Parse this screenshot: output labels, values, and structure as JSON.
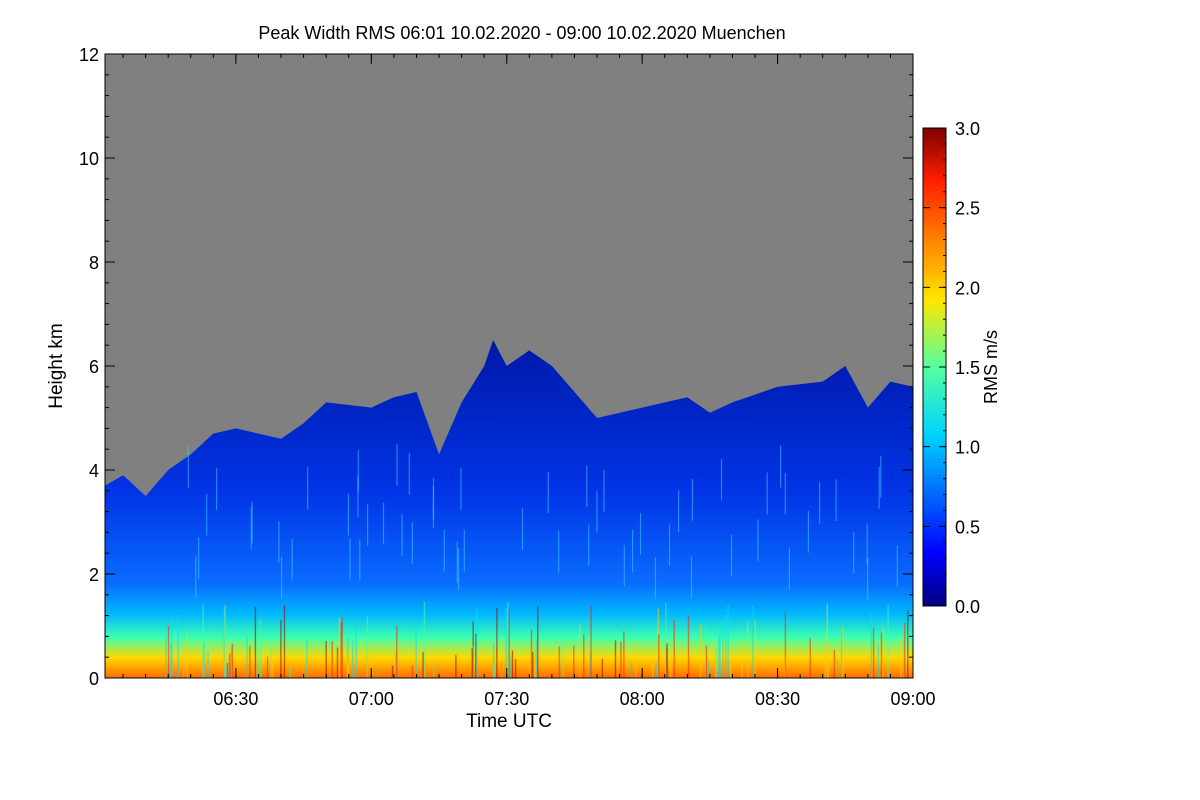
{
  "title": "Peak Width RMS   06:01 10.02.2020 - 09:00 10.02.2020 Muenchen",
  "chart_data": {
    "type": "heatmap",
    "title": "Peak Width RMS   06:01 10.02.2020 - 09:00 10.02.2020 Muenchen",
    "xlabel": "Time UTC",
    "ylabel": "Height km",
    "x_range": [
      "06:01",
      "09:00"
    ],
    "x_ticks": [
      "06:30",
      "07:00",
      "07:30",
      "08:00",
      "08:30",
      "09:00"
    ],
    "y_range": [
      0,
      12
    ],
    "y_ticks": [
      "0",
      "2",
      "4",
      "6",
      "8",
      "10",
      "12"
    ],
    "colorbar": {
      "label": "RMS m/s",
      "range": [
        0.0,
        3.0
      ],
      "ticks": [
        "0.0",
        "0.5",
        "1.0",
        "1.5",
        "2.0",
        "2.5",
        "3.0"
      ],
      "colormap": "jet"
    },
    "background_color": "#808080",
    "echo_top_km": [
      {
        "t": "06:01",
        "h": 3.7
      },
      {
        "t": "06:05",
        "h": 3.9
      },
      {
        "t": "06:10",
        "h": 3.5
      },
      {
        "t": "06:12",
        "h": 3.7
      },
      {
        "t": "06:15",
        "h": 4.0
      },
      {
        "t": "06:20",
        "h": 4.3
      },
      {
        "t": "06:25",
        "h": 4.7
      },
      {
        "t": "06:30",
        "h": 4.8
      },
      {
        "t": "06:40",
        "h": 4.6
      },
      {
        "t": "06:45",
        "h": 4.9
      },
      {
        "t": "06:50",
        "h": 5.3
      },
      {
        "t": "07:00",
        "h": 5.2
      },
      {
        "t": "07:05",
        "h": 5.4
      },
      {
        "t": "07:10",
        "h": 5.5
      },
      {
        "t": "07:15",
        "h": 4.3
      },
      {
        "t": "07:20",
        "h": 5.3
      },
      {
        "t": "07:25",
        "h": 6.0
      },
      {
        "t": "07:27",
        "h": 6.5
      },
      {
        "t": "07:30",
        "h": 6.0
      },
      {
        "t": "07:35",
        "h": 6.3
      },
      {
        "t": "07:40",
        "h": 6.0
      },
      {
        "t": "07:45",
        "h": 5.5
      },
      {
        "t": "07:50",
        "h": 5.0
      },
      {
        "t": "08:00",
        "h": 5.2
      },
      {
        "t": "08:10",
        "h": 5.4
      },
      {
        "t": "08:15",
        "h": 5.1
      },
      {
        "t": "08:20",
        "h": 5.3
      },
      {
        "t": "08:30",
        "h": 5.6
      },
      {
        "t": "08:40",
        "h": 5.7
      },
      {
        "t": "08:45",
        "h": 6.0
      },
      {
        "t": "08:50",
        "h": 5.2
      },
      {
        "t": "08:55",
        "h": 5.7
      },
      {
        "t": "09:00",
        "h": 5.6
      }
    ],
    "layers": [
      {
        "band_km": [
          0.0,
          1.0
        ],
        "rms_ms": 2.5
      },
      {
        "band_km": [
          1.0,
          1.5
        ],
        "rms_ms": 1.2
      },
      {
        "band_km": [
          1.5,
          4.0
        ],
        "rms_ms": 0.5
      },
      {
        "band_km": [
          4.0,
          6.5
        ],
        "rms_ms": 0.3
      }
    ],
    "grid": false
  }
}
